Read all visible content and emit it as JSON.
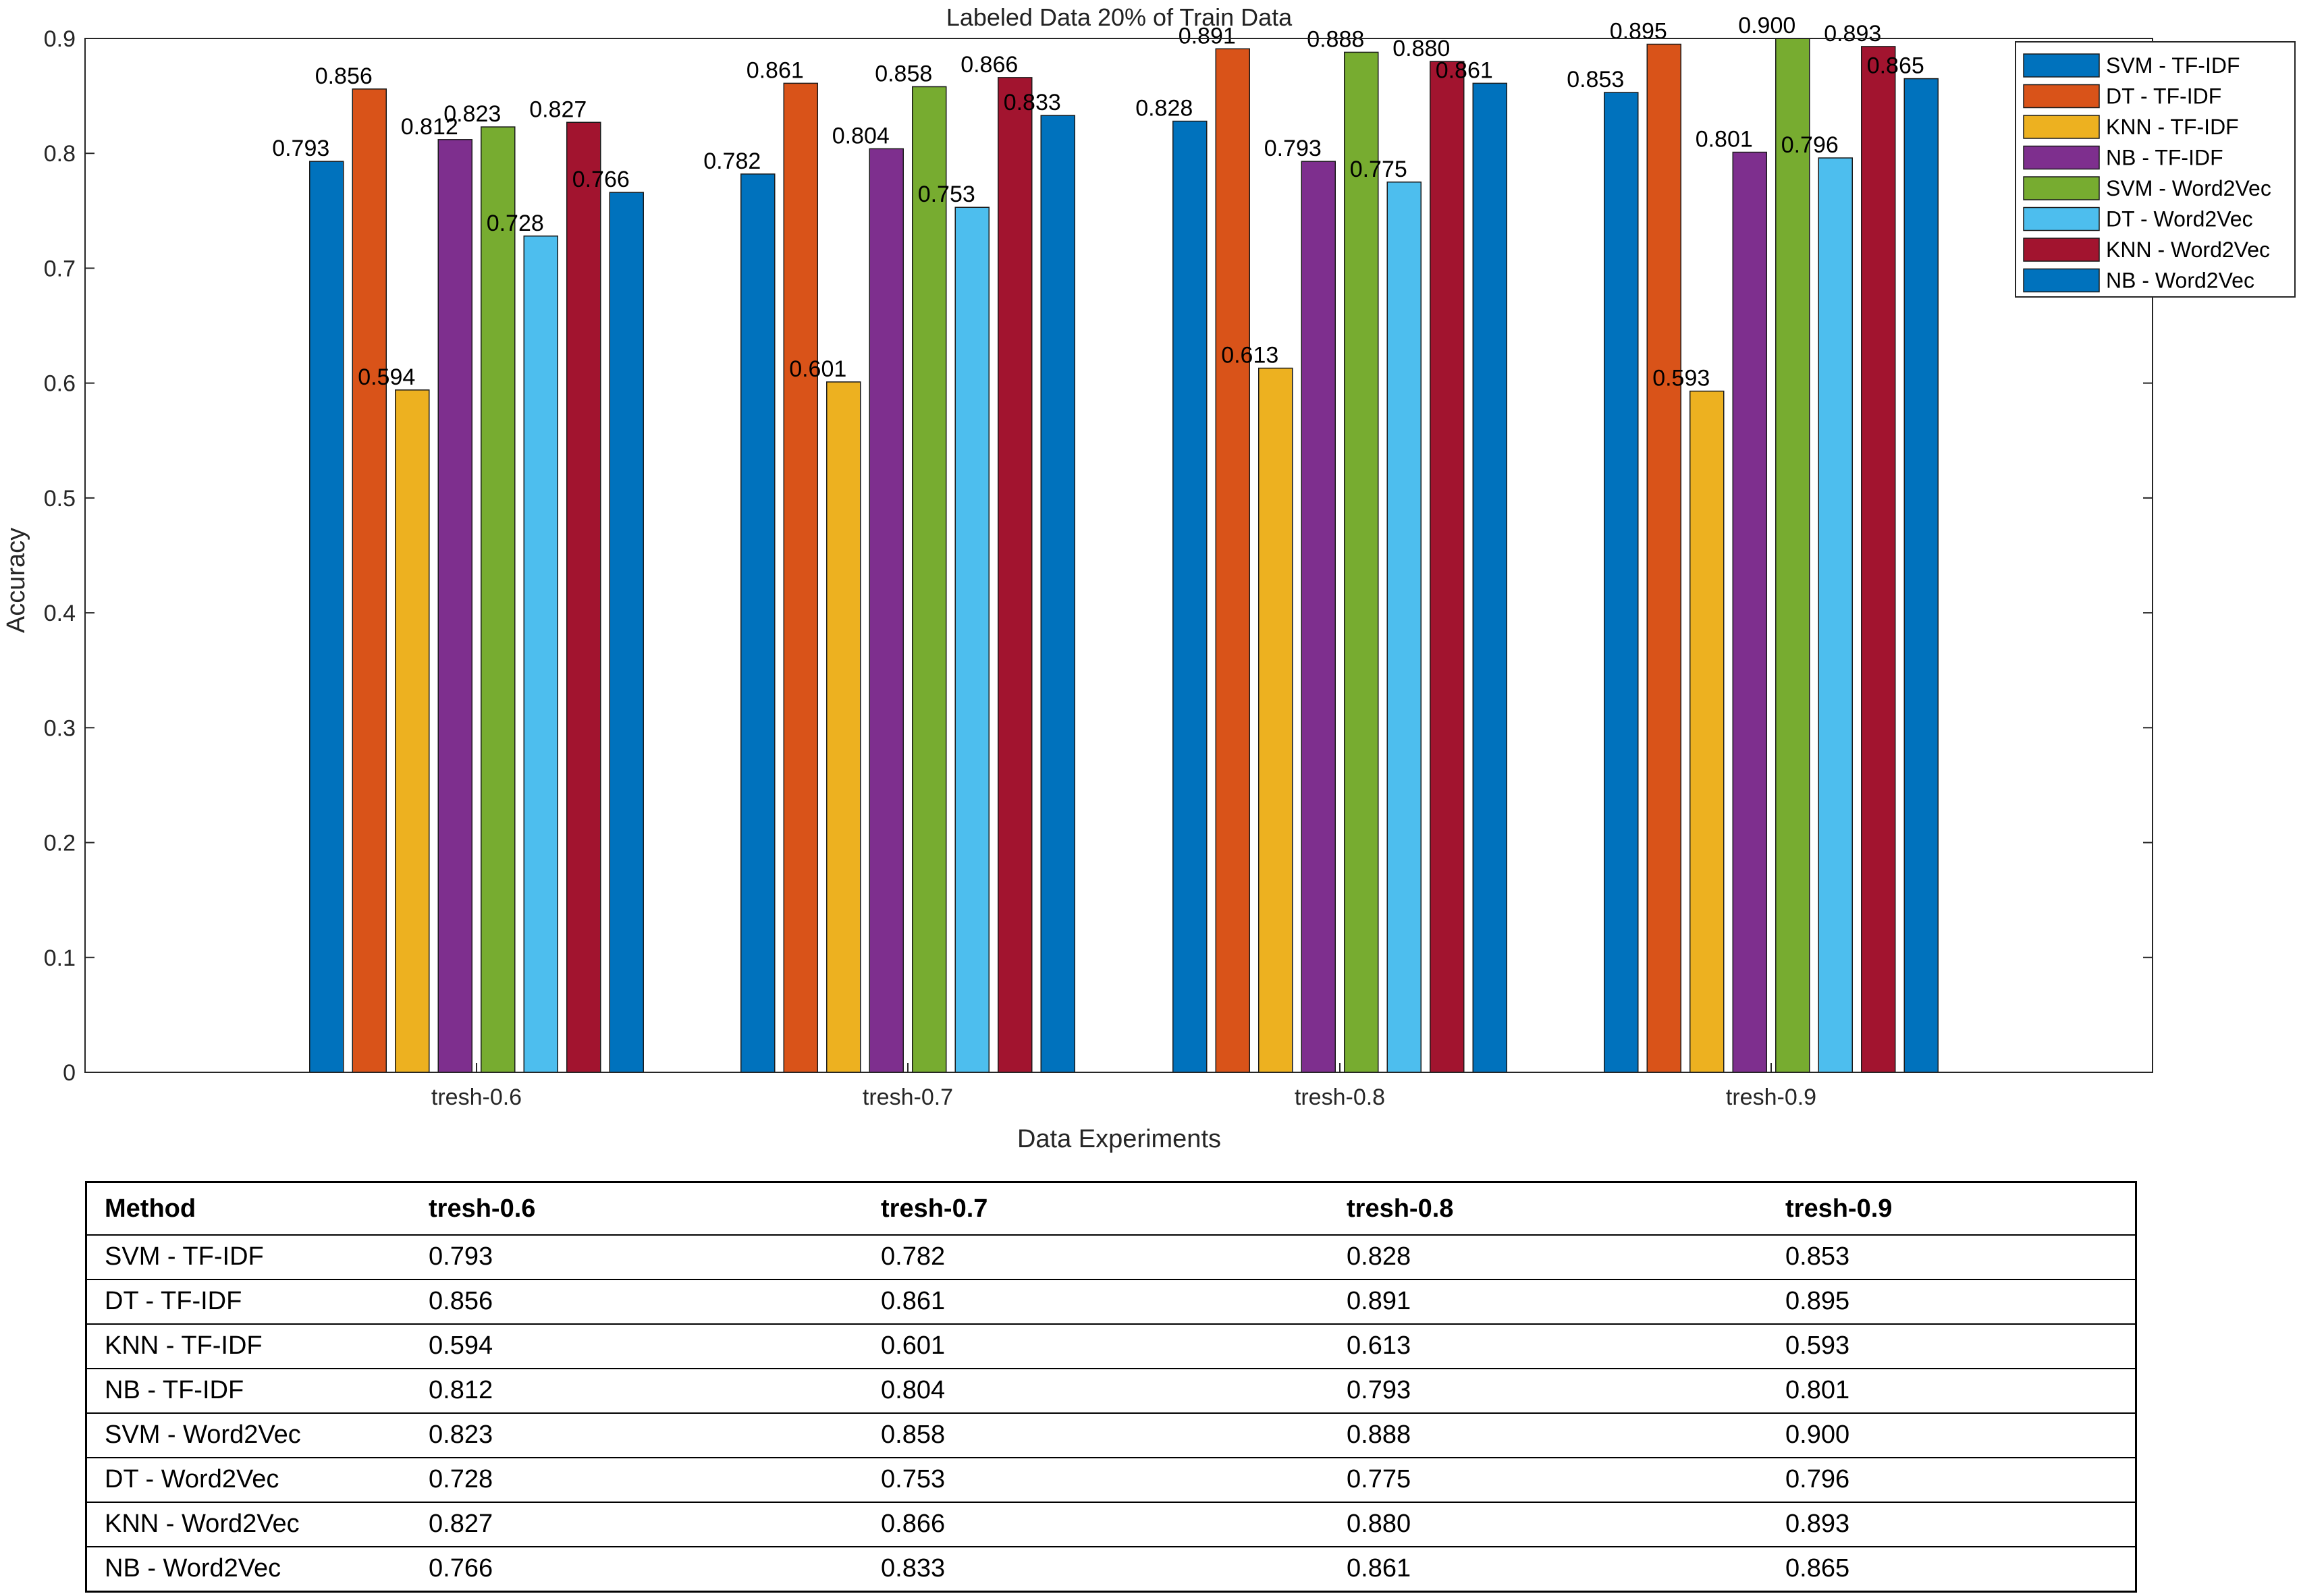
{
  "chart_data": {
    "type": "bar",
    "title": "Labeled Data 20% of Train Data",
    "xlabel": "Data Experiments",
    "ylabel": "Accuracy",
    "ylim": [
      0,
      0.9
    ],
    "yticks": [
      "0",
      "0.1",
      "0.2",
      "0.3",
      "0.4",
      "0.5",
      "0.6",
      "0.7",
      "0.8",
      "0.9"
    ],
    "categories": [
      "tresh-0.6",
      "tresh-0.7",
      "tresh-0.8",
      "tresh-0.9"
    ],
    "legend_position": "top-right",
    "grid": false,
    "series": [
      {
        "name": "SVM - TF-IDF",
        "color": "#0072BD",
        "values": [
          0.793,
          0.782,
          0.828,
          0.853
        ],
        "labels": [
          "0.793",
          "0.782",
          "0.828",
          "0.853"
        ]
      },
      {
        "name": "DT - TF-IDF",
        "color": "#D95319",
        "values": [
          0.856,
          0.861,
          0.891,
          0.895
        ],
        "labels": [
          "0.856",
          "0.861",
          "0.891",
          "0.895"
        ]
      },
      {
        "name": "KNN - TF-IDF",
        "color": "#EDB120",
        "values": [
          0.594,
          0.601,
          0.613,
          0.593
        ],
        "labels": [
          "0.594",
          "0.601",
          "0.613",
          "0.593"
        ]
      },
      {
        "name": "NB - TF-IDF",
        "color": "#7E2F8E",
        "values": [
          0.812,
          0.804,
          0.793,
          0.801
        ],
        "labels": [
          "0.812",
          "0.804",
          "0.793",
          "0.801"
        ]
      },
      {
        "name": "SVM - Word2Vec",
        "color": "#77AC30",
        "values": [
          0.823,
          0.858,
          0.888,
          0.9
        ],
        "labels": [
          "0.823",
          "0.858",
          "0.888",
          "0.900"
        ]
      },
      {
        "name": "DT - Word2Vec",
        "color": "#4DBEEE",
        "values": [
          0.728,
          0.753,
          0.775,
          0.796
        ],
        "labels": [
          "0.728",
          "0.753",
          "0.775",
          "0.796"
        ]
      },
      {
        "name": "KNN - Word2Vec",
        "color": "#A2142F",
        "values": [
          0.827,
          0.866,
          0.88,
          0.893
        ],
        "labels": [
          "0.827",
          "0.866",
          "0.880",
          "0.893"
        ]
      },
      {
        "name": "NB - Word2Vec",
        "color": "#0072BD",
        "values": [
          0.766,
          0.833,
          0.861,
          0.865
        ],
        "labels": [
          "0.766",
          "0.833",
          "0.861",
          "0.865"
        ]
      }
    ]
  },
  "table": {
    "headers": [
      "Method",
      "tresh-0.6",
      "tresh-0.7",
      "tresh-0.8",
      "tresh-0.9"
    ],
    "rows": [
      [
        "SVM - TF-IDF",
        "0.793",
        "0.782",
        "0.828",
        "0.853"
      ],
      [
        "DT - TF-IDF",
        "0.856",
        "0.861",
        "0.891",
        "0.895"
      ],
      [
        "KNN - TF-IDF",
        "0.594",
        "0.601",
        "0.613",
        "0.593"
      ],
      [
        "NB - TF-IDF",
        "0.812",
        "0.804",
        "0.793",
        "0.801"
      ],
      [
        "SVM - Word2Vec",
        "0.823",
        "0.858",
        "0.888",
        "0.900"
      ],
      [
        "DT - Word2Vec",
        "0.728",
        "0.753",
        "0.775",
        "0.796"
      ],
      [
        "KNN - Word2Vec",
        "0.827",
        "0.866",
        "0.880",
        "0.893"
      ],
      [
        "NB - Word2Vec",
        "0.766",
        "0.833",
        "0.861",
        "0.865"
      ]
    ]
  }
}
